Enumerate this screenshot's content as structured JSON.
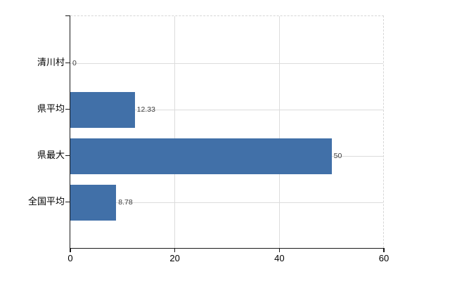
{
  "chart_data": {
    "type": "bar",
    "orientation": "horizontal",
    "title": "",
    "xlabel": "",
    "ylabel": "",
    "categories": [
      "清川村",
      "県平均",
      "県最大",
      "全国平均"
    ],
    "values": [
      0,
      12.33,
      50,
      8.78
    ],
    "data_labels": [
      "0",
      "12.33",
      "50",
      "8.78"
    ],
    "xlim": [
      0,
      60
    ],
    "x_ticks": [
      0,
      20,
      40,
      60
    ],
    "x_tick_labels": [
      "0",
      "20",
      "40",
      "60"
    ],
    "grid": true,
    "legend": "none",
    "colors": {
      "bar": "#4170a8",
      "gridline": "#dcdcdc",
      "border_dashed": "#d6d6d6",
      "axis": "#1a1a1a",
      "category_label": "#000000",
      "data_label": "#3c3c3c",
      "background": "#ffffff"
    }
  }
}
